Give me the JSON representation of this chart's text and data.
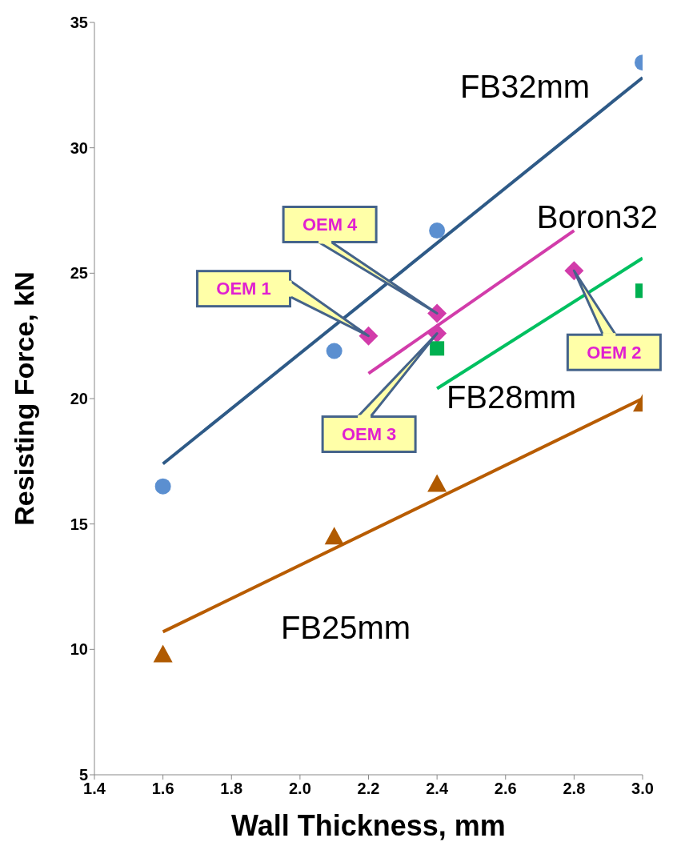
{
  "chart_data": {
    "type": "scatter",
    "xlabel": "Wall Thickness, mm",
    "ylabel": "Resisting Force,  kN",
    "xlim": [
      1.4,
      3.0
    ],
    "xticks": [
      1.4,
      1.6,
      1.8,
      {
        "value": 2,
        "label": "2.0"
      },
      2.2,
      2.4,
      2.6,
      2.8,
      {
        "value": 3,
        "label": "3.0"
      }
    ],
    "ylim": [
      5,
      35
    ],
    "yticks": [
      5,
      10,
      15,
      20,
      25,
      30,
      35
    ],
    "grid": false,
    "legend": false,
    "series": [
      {
        "name": "FB32mm",
        "marker": "circle",
        "color": "#5b8fd0",
        "x": [
          1.6,
          2.1,
          2.4,
          3.0
        ],
        "values": [
          16.5,
          21.9,
          26.7,
          33.4
        ]
      },
      {
        "type": "line",
        "marker": "none",
        "color": "#2e5a87",
        "x": [
          1.6,
          3.0
        ],
        "values": [
          17.4,
          32.8
        ]
      },
      {
        "name": "Boron32",
        "marker": "diamond",
        "color": "#d23caa",
        "x": [
          2.2,
          2.4,
          2.4,
          2.8
        ],
        "values": [
          22.5,
          23.4,
          22.6,
          25.1
        ]
      },
      {
        "type": "line",
        "marker": "none",
        "color": "#d23caa",
        "x": [
          2.2,
          2.8
        ],
        "values": [
          21.0,
          26.7
        ]
      },
      {
        "name": "FB28mm",
        "marker": "square",
        "color": "#00b050",
        "x": [
          2.4,
          3.0
        ],
        "values": [
          22.0,
          24.3
        ]
      },
      {
        "type": "line",
        "marker": "none",
        "color": "#00c060",
        "x": [
          2.4,
          3.0
        ],
        "values": [
          20.4,
          25.6
        ]
      },
      {
        "name": "FB25mm",
        "marker": "triangle",
        "color": "#b05a00",
        "x": [
          1.6,
          2.1,
          2.4,
          3.0
        ],
        "values": [
          9.8,
          14.5,
          16.6,
          19.8
        ]
      },
      {
        "type": "line",
        "marker": "none",
        "color": "#b85c00",
        "x": [
          1.6,
          3.0
        ],
        "values": [
          10.7,
          20.0
        ]
      }
    ],
    "annotations": [
      "OEM 1",
      "OEM 4",
      "OEM 3",
      "OEM 2"
    ]
  }
}
